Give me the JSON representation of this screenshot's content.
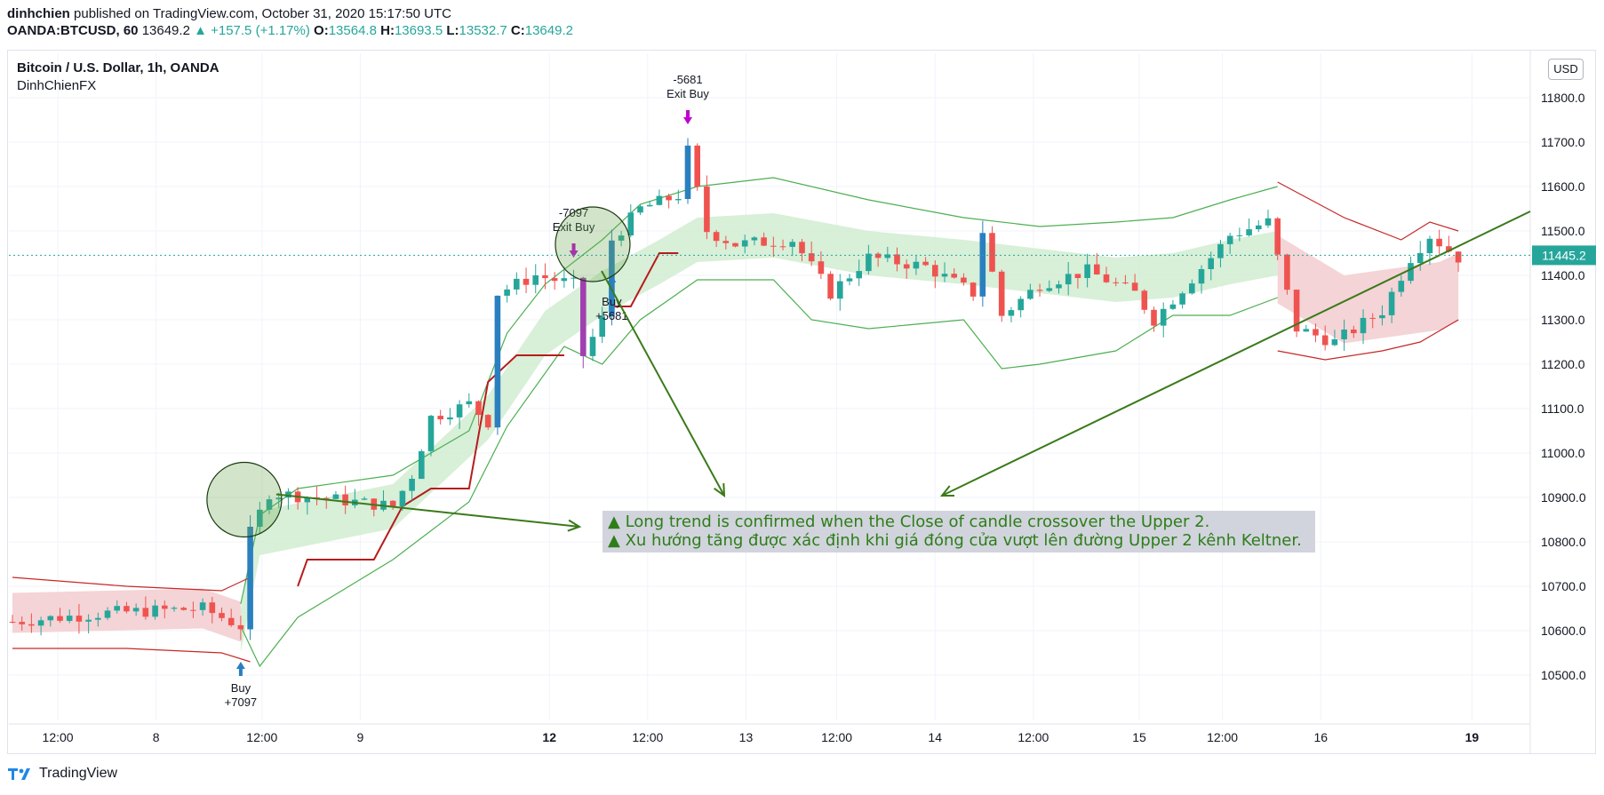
{
  "header": {
    "author": "dinhchien",
    "published_text": "published on TradingView.com, October 31, 2020 15:17:50 UTC",
    "symbol_interval": "OANDA:BTCUSD, 60",
    "last": "13649.2",
    "change": "▲ +157.5 (+1.17%)",
    "o_label": "O:",
    "o": "13564.8",
    "h_label": "H:",
    "h": "13693.5",
    "l_label": "L:",
    "l": "13532.7",
    "c_label": "C:",
    "c": "13649.2"
  },
  "symbol_title": "Bitcoin / U.S. Dollar, 1h, OANDA",
  "author_sub": "DinhChienFX",
  "currency": "USD",
  "footer_brand": "TradingView",
  "annotation": {
    "line1": "▲ Long trend is confirmed when the Close of candle crossover the Upper 2.",
    "line2": "▲ Xu hướng tăng được xác định khi giá đóng cửa vượt lên đường Upper 2 kênh Keltner."
  },
  "colors": {
    "up": "#26a69a",
    "down": "#ef5350",
    "signal_blue": "#2a7fbf",
    "signal_purple": "#a040b0",
    "green_band": "#d4edd4",
    "red_band": "#f3cfd2",
    "green_line": "#4caf50",
    "red_line": "#c62828",
    "stop_line": "#b71c1c",
    "drawing": "#3a7a1a"
  },
  "signals": [
    {
      "label": "Buy",
      "value": "+7097"
    },
    {
      "label": "-7097",
      "value": "Exit Buy"
    },
    {
      "label": "Buy",
      "value": "+5681"
    },
    {
      "label": "-5681",
      "value": "Exit Buy"
    }
  ],
  "chart_data": {
    "type": "candlestick",
    "title": "Bitcoin / U.S. Dollar, 1h, OANDA",
    "ylim": [
      10400,
      11900
    ],
    "y_ticks": [
      "10500.0",
      "10600.0",
      "10700.0",
      "10800.0",
      "10900.0",
      "11000.0",
      "11100.0",
      "11200.0",
      "11300.0",
      "11400.0",
      "11500.0",
      "11600.0",
      "11700.0",
      "11800.0"
    ],
    "x_ticks": [
      "12:00",
      "8",
      "12:00",
      "9",
      "12",
      "12:00",
      "13",
      "12:00",
      "14",
      "12:00",
      "15",
      "12:00",
      "16",
      "19"
    ],
    "last_price": "11445.2",
    "x_count": 160,
    "bars_start": 0,
    "close_path": [
      [
        0,
        10620
      ],
      [
        10,
        10640
      ],
      [
        20,
        10650
      ],
      [
        24,
        10610
      ],
      [
        25,
        10820
      ],
      [
        27,
        10910
      ],
      [
        32,
        10900
      ],
      [
        40,
        10880
      ],
      [
        42,
        10950
      ],
      [
        44,
        11080
      ],
      [
        48,
        11110
      ],
      [
        50,
        11070
      ],
      [
        51,
        11360
      ],
      [
        55,
        11400
      ],
      [
        59,
        11380
      ],
      [
        60,
        11220
      ],
      [
        62,
        11300
      ],
      [
        63,
        11480
      ],
      [
        66,
        11550
      ],
      [
        70,
        11580
      ],
      [
        71,
        11680
      ],
      [
        73,
        11500
      ],
      [
        76,
        11470
      ],
      [
        82,
        11480
      ],
      [
        86,
        11360
      ],
      [
        90,
        11440
      ],
      [
        96,
        11420
      ],
      [
        101,
        11360
      ],
      [
        102,
        11500
      ],
      [
        104,
        11310
      ],
      [
        108,
        11380
      ],
      [
        113,
        11410
      ],
      [
        118,
        11360
      ],
      [
        120,
        11300
      ],
      [
        126,
        11440
      ],
      [
        128,
        11490
      ],
      [
        132,
        11520
      ],
      [
        135,
        11280
      ],
      [
        139,
        11250
      ],
      [
        144,
        11320
      ],
      [
        147,
        11440
      ],
      [
        149,
        11490
      ],
      [
        152,
        11440
      ]
    ],
    "green_mid_path": [
      [
        24,
        10600
      ],
      [
        26,
        10820
      ],
      [
        40,
        10880
      ],
      [
        45,
        10980
      ],
      [
        50,
        11080
      ],
      [
        56,
        11270
      ],
      [
        62,
        11360
      ],
      [
        68,
        11430
      ],
      [
        72,
        11480
      ],
      [
        80,
        11490
      ],
      [
        90,
        11450
      ],
      [
        100,
        11430
      ],
      [
        108,
        11410
      ],
      [
        116,
        11390
      ],
      [
        122,
        11400
      ],
      [
        128,
        11430
      ],
      [
        133,
        11450
      ]
    ],
    "green_half_width": 50,
    "green_upper_path": [
      [
        24,
        10660
      ],
      [
        26,
        10860
      ],
      [
        30,
        10920
      ],
      [
        40,
        10950
      ],
      [
        48,
        11050
      ],
      [
        52,
        11270
      ],
      [
        56,
        11380
      ],
      [
        62,
        11480
      ],
      [
        66,
        11560
      ],
      [
        72,
        11600
      ],
      [
        80,
        11620
      ],
      [
        90,
        11570
      ],
      [
        100,
        11530
      ],
      [
        108,
        11510
      ],
      [
        116,
        11520
      ],
      [
        122,
        11530
      ],
      [
        128,
        11570
      ],
      [
        133,
        11600
      ]
    ],
    "green_lower_path": [
      [
        24,
        10610
      ],
      [
        26,
        10520
      ],
      [
        30,
        10630
      ],
      [
        40,
        10760
      ],
      [
        48,
        10890
      ],
      [
        52,
        11060
      ],
      [
        58,
        11240
      ],
      [
        62,
        11200
      ],
      [
        66,
        11300
      ],
      [
        72,
        11390
      ],
      [
        80,
        11390
      ],
      [
        84,
        11300
      ],
      [
        90,
        11280
      ],
      [
        100,
        11300
      ],
      [
        104,
        11190
      ],
      [
        108,
        11200
      ],
      [
        116,
        11230
      ],
      [
        122,
        11310
      ],
      [
        128,
        11310
      ],
      [
        133,
        11350
      ]
    ],
    "red_mid_path": [
      [
        0,
        10640
      ],
      [
        20,
        10650
      ],
      [
        24,
        10620
      ]
    ],
    "red_mid_path2": [
      [
        133,
        11400
      ],
      [
        140,
        11310
      ],
      [
        150,
        11340
      ],
      [
        152,
        11360
      ]
    ],
    "red_half_width": 45,
    "red_upper_path": [
      [
        0,
        10720
      ],
      [
        12,
        10700
      ],
      [
        22,
        10690
      ],
      [
        25,
        10720
      ]
    ],
    "red_lower_path": [
      [
        0,
        10560
      ],
      [
        12,
        10560
      ],
      [
        22,
        10550
      ],
      [
        25,
        10530
      ]
    ],
    "red_upper_path2": [
      [
        133,
        11610
      ],
      [
        140,
        11530
      ],
      [
        146,
        11480
      ],
      [
        149,
        11520
      ],
      [
        152,
        11500
      ]
    ],
    "red_lower_path2": [
      [
        133,
        11230
      ],
      [
        138,
        11210
      ],
      [
        144,
        11230
      ],
      [
        148,
        11250
      ],
      [
        152,
        11300
      ]
    ],
    "stop_path": [
      [
        30,
        10700
      ],
      [
        31,
        10760
      ],
      [
        38,
        10760
      ],
      [
        41,
        10880
      ],
      [
        44,
        10920
      ],
      [
        48,
        10920
      ],
      [
        50,
        11160
      ],
      [
        53,
        11220
      ],
      [
        58,
        11220
      ]
    ],
    "stop_path2": [
      [
        63,
        11330
      ],
      [
        65,
        11330
      ],
      [
        68,
        11450
      ],
      [
        70,
        11450
      ]
    ],
    "signal_bars": [
      {
        "i": 59,
        "kind": "exit",
        "label": "-7097",
        "sub": "Exit Buy"
      },
      {
        "i": 24,
        "kind": "buy",
        "label": "Buy",
        "sub": "+7097"
      },
      {
        "i": 63,
        "kind": "buy",
        "label": "Buy",
        "sub": "+5681"
      },
      {
        "i": 71,
        "kind": "exit",
        "label": "-5681",
        "sub": "Exit Buy"
      }
    ]
  }
}
